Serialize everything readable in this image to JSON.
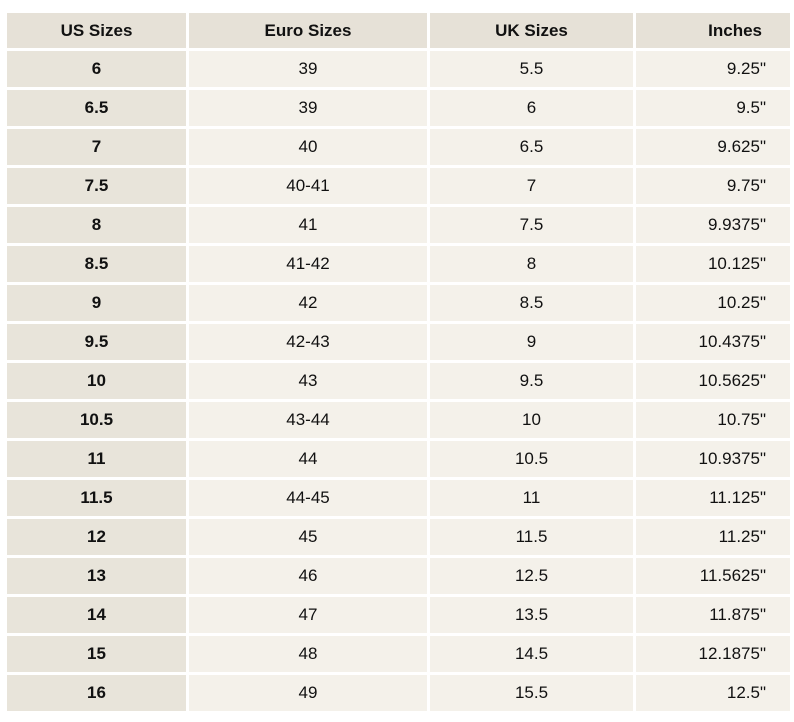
{
  "headers": {
    "us": "US Sizes",
    "euro": "Euro Sizes",
    "uk": "UK Sizes",
    "inches": "Inches"
  },
  "rows": [
    {
      "us": "6",
      "euro": "39",
      "uk": "5.5",
      "inches": "9.25\""
    },
    {
      "us": "6.5",
      "euro": "39",
      "uk": "6",
      "inches": "9.5\""
    },
    {
      "us": "7",
      "euro": "40",
      "uk": "6.5",
      "inches": "9.625\""
    },
    {
      "us": "7.5",
      "euro": "40-41",
      "uk": "7",
      "inches": "9.75\""
    },
    {
      "us": "8",
      "euro": "41",
      "uk": "7.5",
      "inches": "9.9375\""
    },
    {
      "us": "8.5",
      "euro": "41-42",
      "uk": "8",
      "inches": "10.125\""
    },
    {
      "us": "9",
      "euro": "42",
      "uk": "8.5",
      "inches": "10.25\""
    },
    {
      "us": "9.5",
      "euro": "42-43",
      "uk": "9",
      "inches": "10.4375\""
    },
    {
      "us": "10",
      "euro": "43",
      "uk": "9.5",
      "inches": "10.5625\""
    },
    {
      "us": "10.5",
      "euro": "43-44",
      "uk": "10",
      "inches": "10.75\""
    },
    {
      "us": "11",
      "euro": "44",
      "uk": "10.5",
      "inches": "10.9375\""
    },
    {
      "us": "11.5",
      "euro": "44-45",
      "uk": "11",
      "inches": "11.125\""
    },
    {
      "us": "12",
      "euro": "45",
      "uk": "11.5",
      "inches": "11.25\""
    },
    {
      "us": "13",
      "euro": "46",
      "uk": "12.5",
      "inches": "11.5625\""
    },
    {
      "us": "14",
      "euro": "47",
      "uk": "13.5",
      "inches": "11.875\""
    },
    {
      "us": "15",
      "euro": "48",
      "uk": "14.5",
      "inches": "12.1875\""
    },
    {
      "us": "16",
      "euro": "49",
      "uk": "15.5",
      "inches": "12.5\""
    }
  ],
  "colors": {
    "header_bg": "#e6e1d7",
    "first_column_bg": "#e8e4da",
    "cell_bg": "#f4f1ea",
    "grid_lines": "#ffffff"
  }
}
